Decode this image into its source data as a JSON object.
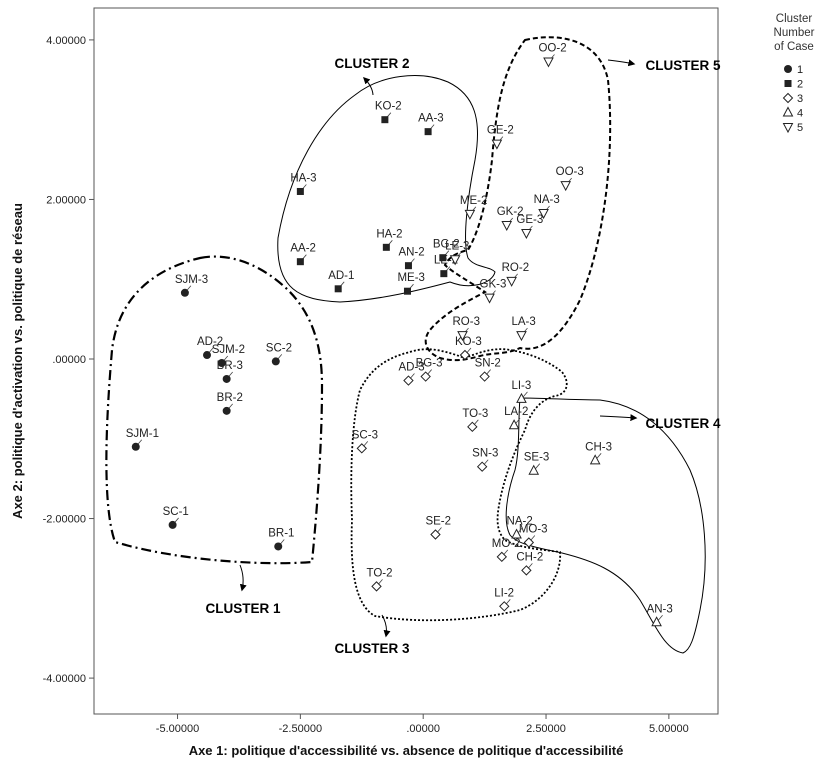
{
  "chart_data": {
    "type": "scatter",
    "xlabel": "Axe 1: politique d'accessibilité vs. absence de politique d'accessibilité",
    "ylabel": "Axe 2: politique d'activation vs. politique de réseau",
    "xlim": [
      -6.7,
      6.0
    ],
    "ylim": [
      -4.45,
      4.4
    ],
    "xticks": [
      {
        "v": -5.0,
        "label": "-5.00000"
      },
      {
        "v": -2.5,
        "label": "-2.50000"
      },
      {
        "v": 0.0,
        "label": ".00000"
      },
      {
        "v": 2.5,
        "label": "2.50000"
      },
      {
        "v": 5.0,
        "label": "5.00000"
      }
    ],
    "yticks": [
      {
        "v": 4.0,
        "label": "4.00000"
      },
      {
        "v": 2.0,
        "label": "2.00000"
      },
      {
        "v": 0.0,
        "label": ".00000"
      },
      {
        "v": -2.0,
        "label": "-2.00000"
      },
      {
        "v": -4.0,
        "label": "-4.00000"
      }
    ],
    "legend": {
      "title_lines": [
        "Cluster",
        "Number",
        "of Case"
      ],
      "position": "right",
      "entries": [
        {
          "cluster": 1,
          "label": "1",
          "marker": "circle"
        },
        {
          "cluster": 2,
          "label": "2",
          "marker": "square"
        },
        {
          "cluster": 3,
          "label": "3",
          "marker": "diamond"
        },
        {
          "cluster": 4,
          "label": "4",
          "marker": "triangle-up"
        },
        {
          "cluster": 5,
          "label": "5",
          "marker": "triangle-down"
        }
      ]
    },
    "cluster_labels": [
      {
        "cluster": 1,
        "text": "CLUSTER 1"
      },
      {
        "cluster": 2,
        "text": "CLUSTER 2"
      },
      {
        "cluster": 3,
        "text": "CLUSTER 3"
      },
      {
        "cluster": 4,
        "text": "CLUSTER 4"
      },
      {
        "cluster": 5,
        "text": "CLUSTER 5"
      }
    ],
    "points": [
      {
        "label": "SJM-3",
        "x": -4.85,
        "y": 0.83,
        "cluster": 1
      },
      {
        "label": "AD-2",
        "x": -4.4,
        "y": 0.05,
        "cluster": 1
      },
      {
        "label": "SJM-2",
        "x": -4.1,
        "y": -0.05,
        "cluster": 1
      },
      {
        "label": "BR-3",
        "x": -4.0,
        "y": -0.25,
        "cluster": 1
      },
      {
        "label": "SC-2",
        "x": -3.0,
        "y": -0.03,
        "cluster": 1
      },
      {
        "label": "BR-2",
        "x": -4.0,
        "y": -0.65,
        "cluster": 1
      },
      {
        "label": "SJM-1",
        "x": -5.85,
        "y": -1.1,
        "cluster": 1
      },
      {
        "label": "SC-1",
        "x": -5.1,
        "y": -2.08,
        "cluster": 1
      },
      {
        "label": "BR-1",
        "x": -2.95,
        "y": -2.35,
        "cluster": 1
      },
      {
        "label": "KO-2",
        "x": -0.78,
        "y": 3.0,
        "cluster": 2
      },
      {
        "label": "AA-3",
        "x": 0.1,
        "y": 2.85,
        "cluster": 2
      },
      {
        "label": "HA-3",
        "x": -2.5,
        "y": 2.1,
        "cluster": 2
      },
      {
        "label": "HA-2",
        "x": -0.75,
        "y": 1.4,
        "cluster": 2
      },
      {
        "label": "AA-2",
        "x": -2.5,
        "y": 1.22,
        "cluster": 2
      },
      {
        "label": "BG-2",
        "x": 0.4,
        "y": 1.27,
        "cluster": 2
      },
      {
        "label": "AN-2",
        "x": -0.3,
        "y": 1.17,
        "cluster": 2
      },
      {
        "label": "AD-1",
        "x": -1.73,
        "y": 0.88,
        "cluster": 2
      },
      {
        "label": "ME-3",
        "x": -0.32,
        "y": 0.85,
        "cluster": 2
      },
      {
        "label": "LE-2",
        "x": 0.42,
        "y": 1.07,
        "cluster": 2
      },
      {
        "label": "KO-3",
        "x": 0.85,
        "y": 0.05,
        "cluster": 3
      },
      {
        "label": "BG-3",
        "x": 0.05,
        "y": -0.22,
        "cluster": 3
      },
      {
        "label": "SN-2",
        "x": 1.25,
        "y": -0.22,
        "cluster": 3
      },
      {
        "label": "AD-3",
        "x": -0.3,
        "y": -0.27,
        "cluster": 3
      },
      {
        "label": "TO-3",
        "x": 1.0,
        "y": -0.85,
        "cluster": 3
      },
      {
        "label": "SC-3",
        "x": -1.25,
        "y": -1.12,
        "cluster": 3
      },
      {
        "label": "SN-3",
        "x": 1.2,
        "y": -1.35,
        "cluster": 3
      },
      {
        "label": "SE-2",
        "x": 0.25,
        "y": -2.2,
        "cluster": 3
      },
      {
        "label": "MO-2",
        "x": 1.6,
        "y": -2.48,
        "cluster": 3
      },
      {
        "label": "MO-3",
        "x": 2.15,
        "y": -2.3,
        "cluster": 3
      },
      {
        "label": "CH-2",
        "x": 2.1,
        "y": -2.65,
        "cluster": 3
      },
      {
        "label": "TO-2",
        "x": -0.95,
        "y": -2.85,
        "cluster": 3
      },
      {
        "label": "LI-2",
        "x": 1.65,
        "y": -3.1,
        "cluster": 3
      },
      {
        "label": "LI-3",
        "x": 2.0,
        "y": -0.5,
        "cluster": 4
      },
      {
        "label": "LA-2",
        "x": 1.85,
        "y": -0.83,
        "cluster": 4
      },
      {
        "label": "SE-3",
        "x": 2.25,
        "y": -1.4,
        "cluster": 4
      },
      {
        "label": "CH-3",
        "x": 3.5,
        "y": -1.27,
        "cluster": 4
      },
      {
        "label": "NA-2",
        "x": 1.9,
        "y": -2.2,
        "cluster": 4
      },
      {
        "label": "AN-3",
        "x": 4.75,
        "y": -3.3,
        "cluster": 4
      },
      {
        "label": "OO-2",
        "x": 2.55,
        "y": 3.73,
        "cluster": 5
      },
      {
        "label": "GE-2",
        "x": 1.5,
        "y": 2.7,
        "cluster": 5
      },
      {
        "label": "OO-3",
        "x": 2.9,
        "y": 2.18,
        "cluster": 5
      },
      {
        "label": "ME-2",
        "x": 0.95,
        "y": 1.82,
        "cluster": 5
      },
      {
        "label": "NA-3",
        "x": 2.45,
        "y": 1.83,
        "cluster": 5
      },
      {
        "label": "GK-2",
        "x": 1.7,
        "y": 1.68,
        "cluster": 5
      },
      {
        "label": "GE-3",
        "x": 2.1,
        "y": 1.58,
        "cluster": 5
      },
      {
        "label": "LE-3",
        "x": 0.65,
        "y": 1.25,
        "cluster": 5
      },
      {
        "label": "RO-2",
        "x": 1.8,
        "y": 0.98,
        "cluster": 5
      },
      {
        "label": "GK-3",
        "x": 1.35,
        "y": 0.77,
        "cluster": 5
      },
      {
        "label": "LA-3",
        "x": 2.0,
        "y": 0.3,
        "cluster": 5
      },
      {
        "label": "RO-3",
        "x": 0.8,
        "y": 0.3,
        "cluster": 5
      }
    ]
  }
}
